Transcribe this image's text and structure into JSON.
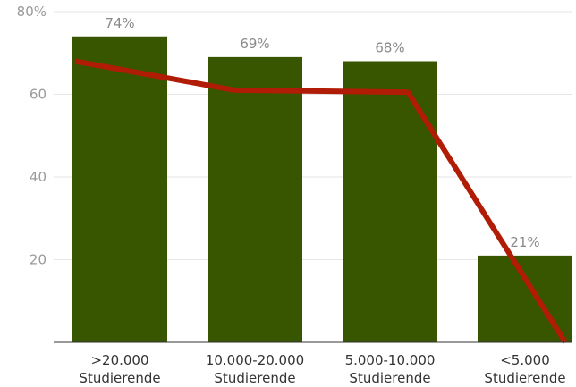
{
  "chart_data": {
    "type": "bar",
    "title": "",
    "xlabel": "",
    "ylabel": "",
    "categories": [
      [
        ">20.000",
        "Studierende"
      ],
      [
        "10.000-20.000",
        "Studierende"
      ],
      [
        "5.000-10.000",
        "Studierende"
      ],
      [
        "<5.000",
        "Studierende"
      ]
    ],
    "series": [
      {
        "type": "bar",
        "values": [
          74,
          69,
          68,
          21
        ],
        "data_labels": [
          "74%",
          "69%",
          "68%",
          "21%"
        ],
        "color": "#385500"
      },
      {
        "type": "line",
        "values": [
          68,
          61,
          60.5,
          0
        ],
        "color": "#b01c05"
      }
    ],
    "ylim": [
      0,
      80
    ],
    "yticks": [
      {
        "value": 20,
        "label": "20"
      },
      {
        "value": 40,
        "label": "40"
      },
      {
        "value": 60,
        "label": "60"
      },
      {
        "value": 80,
        "label": "80%"
      }
    ],
    "grid": true,
    "legend": "none"
  }
}
